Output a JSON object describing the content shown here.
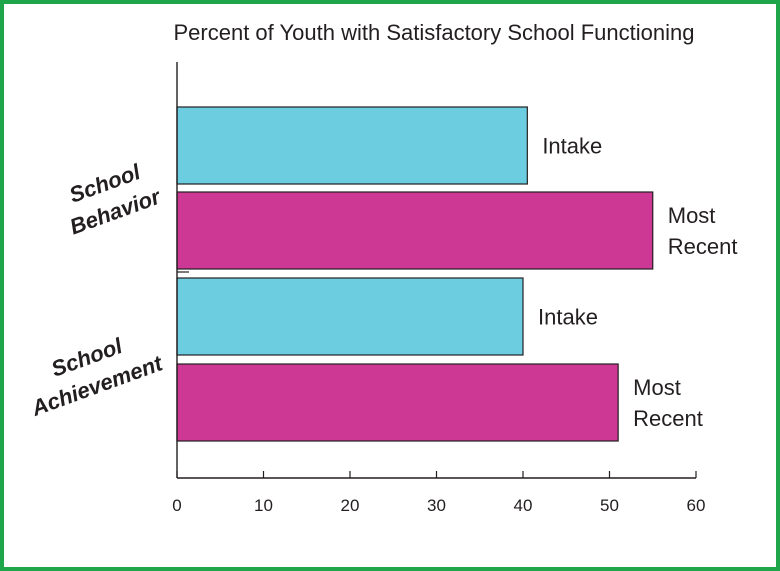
{
  "chart_data": {
    "type": "bar",
    "orientation": "horizontal",
    "title": "Percent of Youth with Satisfactory School Functioning",
    "xlabel": "",
    "ylabel": "",
    "xlim": [
      0,
      60
    ],
    "x_ticks": [
      "0",
      "10",
      "20",
      "30",
      "40",
      "50",
      "60"
    ],
    "grid": false,
    "groups": [
      {
        "label_lines": [
          "School",
          "Behavior"
        ],
        "bars": [
          {
            "label_lines": [
              "Intake"
            ],
            "value": 40.5,
            "color": "#6ccde1"
          },
          {
            "label_lines": [
              "Most",
              "Recent"
            ],
            "value": 55,
            "color": "#cc3894"
          }
        ]
      },
      {
        "label_lines": [
          "School",
          "Achievement"
        ],
        "bars": [
          {
            "label_lines": [
              "Intake"
            ],
            "value": 40,
            "color": "#6ccde1"
          },
          {
            "label_lines": [
              "Most",
              "Recent"
            ],
            "value": 51,
            "color": "#cc3894"
          }
        ]
      }
    ],
    "colors": {
      "frame": "#1fa64a",
      "axis": "#231f20",
      "text": "#231f20"
    }
  }
}
